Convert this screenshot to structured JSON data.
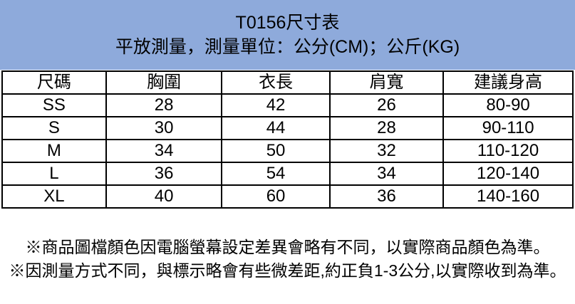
{
  "banner": {
    "title": "T0156尺寸表",
    "subtitle": "平放測量，測量單位：公分(CM)；公斤(KG)",
    "background_color": "#8EAADB",
    "text_color": "#000000"
  },
  "table": {
    "columns": [
      "尺碼",
      "胸圍",
      "衣長",
      "肩寬",
      "建議身高"
    ],
    "rows": [
      [
        "SS",
        "28",
        "42",
        "26",
        "80-90"
      ],
      [
        "S",
        "30",
        "44",
        "28",
        "90-110"
      ],
      [
        "M",
        "34",
        "50",
        "32",
        "110-120"
      ],
      [
        "L",
        "36",
        "54",
        "34",
        "120-140"
      ],
      [
        "XL",
        "40",
        "60",
        "36",
        "140-160"
      ]
    ],
    "border_color": "#000000"
  },
  "notes": [
    "※商品圖檔顏色因電腦螢幕設定差異會略有不同，以實際商品顏色為準。",
    "※因測量方式不同，與標示略會有些微差距,約正負1-3公分,以實際收到為準。"
  ]
}
